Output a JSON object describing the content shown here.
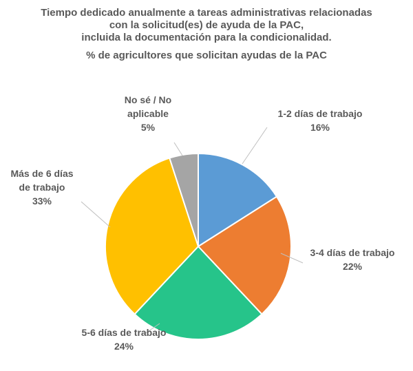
{
  "chart_data": {
    "type": "pie",
    "title_lines": [
      "Tiempo dedicado anualmente a tareas administrativas relacionadas",
      "con la solicitud(es) de ayuda de la PAC,",
      "incluida la documentación para la condicionalidad."
    ],
    "subtitle": "% de agricultores que solicitan ayudas de la PAC",
    "slices": [
      {
        "label_lines": [
          "1-2 días de trabajo"
        ],
        "pct_label": "16%",
        "value": 16,
        "color": "#5B9BD5"
      },
      {
        "label_lines": [
          "3-4 días de trabajo"
        ],
        "pct_label": "22%",
        "value": 22,
        "color": "#ED7D31"
      },
      {
        "label_lines": [
          "5-6 días de trabajo"
        ],
        "pct_label": "24%",
        "value": 24,
        "color": "#26C48A"
      },
      {
        "label_lines": [
          "Más de 6 días",
          "de trabajo"
        ],
        "pct_label": "33%",
        "value": 33,
        "color": "#FFC000"
      },
      {
        "label_lines": [
          "No sé / No",
          "aplicable"
        ],
        "pct_label": "5%",
        "value": 5,
        "color": "#A5A5A5"
      }
    ]
  }
}
